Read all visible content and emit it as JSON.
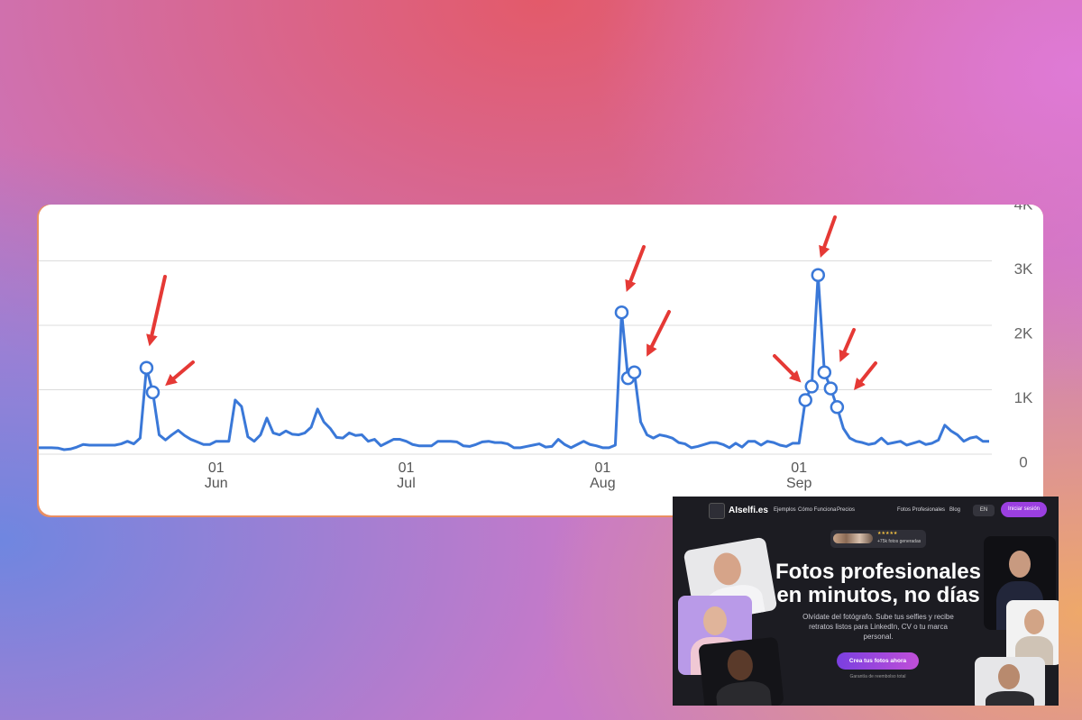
{
  "chart_data": {
    "type": "line",
    "categories": [
      null,
      null,
      null,
      null,
      null,
      null,
      null,
      null,
      null,
      null,
      null,
      null,
      null,
      null,
      null,
      null,
      null,
      null,
      null,
      null,
      null,
      null,
      null,
      null,
      null,
      null,
      null,
      null,
      "01\nJun",
      null,
      null,
      null,
      null,
      null,
      null,
      null,
      null,
      null,
      null,
      null,
      null,
      null,
      null,
      null,
      null,
      null,
      null,
      null,
      null,
      null,
      null,
      null,
      null,
      null,
      null,
      null,
      null,
      null,
      "01\nJul",
      null,
      null,
      null,
      null,
      null,
      null,
      null,
      null,
      null,
      null,
      null,
      null,
      null,
      null,
      null,
      null,
      null,
      null,
      null,
      null,
      null,
      null,
      null,
      null,
      null,
      null,
      null,
      null,
      null,
      null,
      "01\nAug",
      null,
      null,
      null,
      null,
      null,
      null,
      null,
      null,
      null,
      null,
      null,
      null,
      null,
      null,
      null,
      null,
      null,
      null,
      null,
      null,
      null,
      null,
      null,
      null,
      null,
      null,
      null,
      null,
      null,
      null,
      "01\nSep",
      null,
      null,
      null,
      null,
      null,
      null,
      null,
      null,
      null,
      null,
      null,
      null,
      null,
      null,
      null,
      null,
      null,
      null,
      null,
      null,
      null,
      null,
      null,
      null,
      null,
      null,
      null,
      null,
      null,
      null
    ],
    "series": [
      {
        "color": "#3a78d8",
        "values": [
          100,
          100,
          100,
          95,
          70,
          80,
          110,
          150,
          140,
          140,
          140,
          140,
          140,
          160,
          200,
          160,
          250,
          1340,
          960,
          300,
          220,
          300,
          370,
          290,
          230,
          190,
          150,
          150,
          200,
          200,
          200,
          840,
          740,
          270,
          200,
          300,
          560,
          330,
          300,
          360,
          310,
          300,
          330,
          420,
          700,
          500,
          400,
          260,
          250,
          330,
          290,
          300,
          200,
          230,
          130,
          180,
          230,
          230,
          200,
          150,
          130,
          130,
          130,
          200,
          200,
          200,
          190,
          130,
          120,
          150,
          190,
          200,
          180,
          180,
          160,
          100,
          100,
          120,
          140,
          160,
          110,
          120,
          230,
          150,
          100,
          150,
          200,
          150,
          130,
          100,
          100,
          140,
          2200,
          1180,
          1270,
          500,
          300,
          250,
          300,
          280,
          250,
          180,
          160,
          100,
          120,
          150,
          180,
          180,
          150,
          100,
          170,
          110,
          200,
          200,
          140,
          200,
          180,
          140,
          120,
          170,
          170,
          840,
          1050,
          2780,
          1270,
          1020,
          730,
          400,
          250,
          200,
          180,
          150,
          170,
          250,
          160,
          180,
          200,
          140,
          170,
          200,
          150,
          170,
          220,
          450,
          360,
          300,
          200,
          250,
          270,
          200,
          200
        ],
        "highlight_indices": [
          17,
          18,
          92,
          93,
          94,
          121,
          122,
          123,
          124,
          125,
          126
        ]
      }
    ],
    "ylim": [
      0,
      4000
    ],
    "yticks": [
      {
        "value": 0,
        "label": "0"
      },
      {
        "value": 1000,
        "label": "1K"
      },
      {
        "value": 2000,
        "label": "2K"
      },
      {
        "value": 3000,
        "label": "3K"
      },
      {
        "value": 4000,
        "label": "4K"
      }
    ],
    "grid": true
  },
  "inset": {
    "logo": "AIselfi.es",
    "nav": [
      "Ejemplos",
      "Cómo Funciona",
      "Precios"
    ],
    "nav_right": [
      "Fotos Profesionales",
      "Blog"
    ],
    "language": "EN",
    "login": "Iniciar sesión",
    "stars": "★★★★★",
    "badge": "+75k fotos generadas",
    "headline": [
      "Fotos profesionales",
      "en minutos, no días"
    ],
    "subtitle": "Olvídate del fotógrafo. Sube tus selfies y recibe retratos listos para LinkedIn, CV o tu marca personal.",
    "cta": "Crea tus fotos ahora",
    "guarantee": "Garantía de reembolso total"
  }
}
